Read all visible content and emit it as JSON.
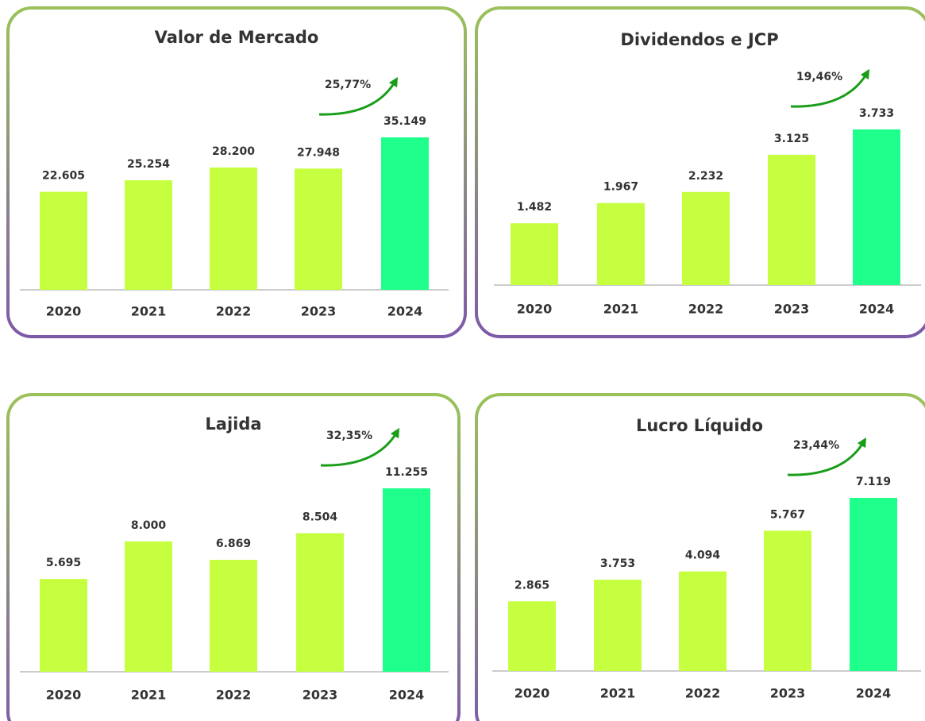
{
  "chart_data": [
    {
      "type": "bar",
      "title": "Valor de Mercado",
      "annotation": "25,77%",
      "categories": [
        "2020",
        "2021",
        "2022",
        "2023",
        "2024"
      ],
      "values": [
        22605,
        25254,
        28200,
        27948,
        35149
      ],
      "value_labels": [
        "22.605",
        "25.254",
        "28.200",
        "27.948",
        "35.149"
      ],
      "colors": [
        "#c6ff3f",
        "#c6ff3f",
        "#c6ff3f",
        "#c6ff3f",
        "#1fff8c"
      ]
    },
    {
      "type": "bar",
      "title": "Dividendos e JCP",
      "annotation": "19,46%",
      "categories": [
        "2020",
        "2021",
        "2022",
        "2023",
        "2024"
      ],
      "values": [
        1482,
        1967,
        2232,
        3125,
        3733
      ],
      "value_labels": [
        "1.482",
        "1.967",
        "2.232",
        "3.125",
        "3.733"
      ],
      "colors": [
        "#c6ff3f",
        "#c6ff3f",
        "#c6ff3f",
        "#c6ff3f",
        "#1fff8c"
      ]
    },
    {
      "type": "bar",
      "title": "Lajida",
      "annotation": "32,35%",
      "categories": [
        "2020",
        "2021",
        "2022",
        "2023",
        "2024"
      ],
      "values": [
        5695,
        8000,
        6869,
        8504,
        11255
      ],
      "value_labels": [
        "5.695",
        "8.000",
        "6.869",
        "8.504",
        "11.255"
      ],
      "colors": [
        "#c6ff3f",
        "#c6ff3f",
        "#c6ff3f",
        "#c6ff3f",
        "#1fff8c"
      ]
    },
    {
      "type": "bar",
      "title": "Lucro Líquido",
      "annotation": "23,44%",
      "categories": [
        "2020",
        "2021",
        "2022",
        "2023",
        "2024"
      ],
      "values": [
        2865,
        3753,
        4094,
        5767,
        7119
      ],
      "value_labels": [
        "2.865",
        "3.753",
        "4.094",
        "5.767",
        "7.119"
      ],
      "colors": [
        "#c6ff3f",
        "#c6ff3f",
        "#c6ff3f",
        "#c6ff3f",
        "#1fff8c"
      ]
    }
  ]
}
